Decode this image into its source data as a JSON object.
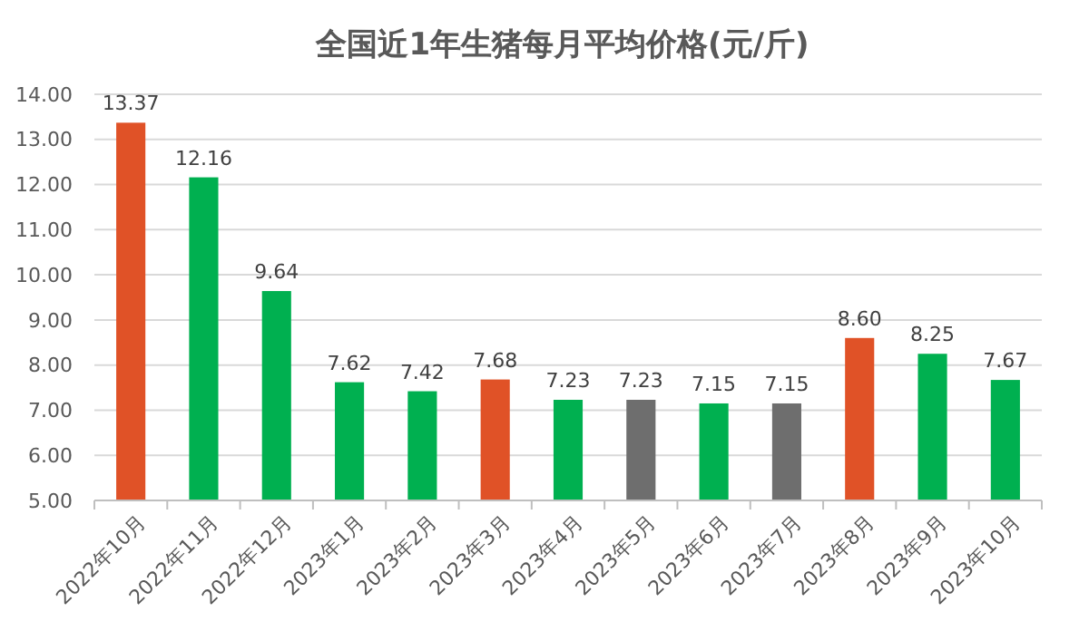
{
  "chart_data": {
    "type": "bar",
    "title": "全国近1年生猪每月平均价格(元/斤)",
    "categories": [
      "2022年10月",
      "2022年11月",
      "2022年12月",
      "2023年1月",
      "2023年2月",
      "2023年3月",
      "2023年4月",
      "2023年5月",
      "2023年6月",
      "2023年7月",
      "2023年8月",
      "2023年9月",
      "2023年10月"
    ],
    "values": [
      13.37,
      12.16,
      9.64,
      7.62,
      7.42,
      7.68,
      7.23,
      7.23,
      7.15,
      7.15,
      8.6,
      8.25,
      7.67
    ],
    "value_labels": [
      "13.37",
      "12.16",
      "9.64",
      "7.62",
      "7.42",
      "7.68",
      "7.23",
      "7.23",
      "7.15",
      "7.15",
      "8.60",
      "8.25",
      "7.67"
    ],
    "colors": [
      "#e05227",
      "#00b050",
      "#00b050",
      "#00b050",
      "#00b050",
      "#e05227",
      "#00b050",
      "#6e6e6e",
      "#00b050",
      "#6e6e6e",
      "#e05227",
      "#00b050",
      "#00b050"
    ],
    "ylim": [
      5,
      14
    ],
    "yticks": [
      {
        "value": 5,
        "label": "5.00"
      },
      {
        "value": 6,
        "label": "6.00"
      },
      {
        "value": 7,
        "label": "7.00"
      },
      {
        "value": 8,
        "label": "8.00"
      },
      {
        "value": 9,
        "label": "9.00"
      },
      {
        "value": 10,
        "label": "10.00"
      },
      {
        "value": 11,
        "label": "11.00"
      },
      {
        "value": 12,
        "label": "12.00"
      },
      {
        "value": 13,
        "label": "13.00"
      },
      {
        "value": 14,
        "label": "14.00"
      }
    ],
    "grid": "y"
  }
}
